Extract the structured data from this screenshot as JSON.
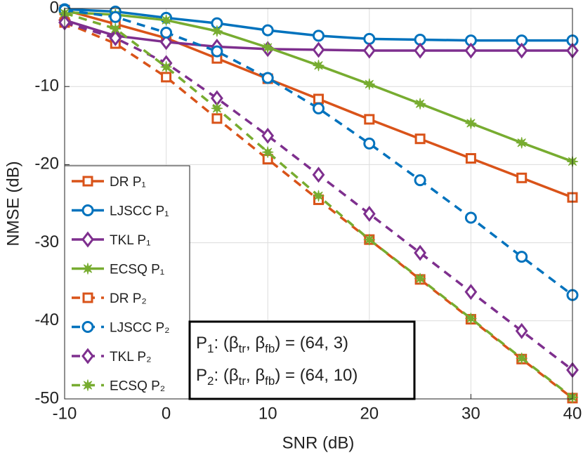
{
  "chart_data": {
    "type": "line",
    "xlabel": "SNR (dB)",
    "ylabel": "NMSE (dB)",
    "x": [
      -10,
      -5,
      0,
      5,
      10,
      15,
      20,
      25,
      30,
      35,
      40
    ],
    "xlim": [
      -10,
      40
    ],
    "xticks": [
      -10,
      0,
      10,
      20,
      30,
      40
    ],
    "ylim": [
      -50,
      0
    ],
    "yticks": [
      -50,
      -40,
      -30,
      -20,
      -10,
      0
    ],
    "grid": true,
    "legend": "lower left",
    "series": [
      {
        "name": "DR P₁",
        "color": "#d95319",
        "marker": "square",
        "dashed": false,
        "values": [
          -0.2,
          -2,
          -3.8,
          -6.4,
          -9,
          -11.6,
          -14.2,
          -16.7,
          -19.2,
          -21.7,
          -24.2
        ]
      },
      {
        "name": "LJSCC P₁",
        "color": "#0072bd",
        "marker": "circle",
        "dashed": false,
        "values": [
          -0.1,
          -0.4,
          -1.2,
          -1.9,
          -2.8,
          -3.5,
          -3.9,
          -4.0,
          -4.1,
          -4.1,
          -4.1
        ]
      },
      {
        "name": "TKL P₁",
        "color": "#7e2f8e",
        "marker": "diamond",
        "dashed": false,
        "values": [
          -1.5,
          -3.5,
          -4.3,
          -4.9,
          -5.2,
          -5.3,
          -5.4,
          -5.4,
          -5.4,
          -5.4,
          -5.4
        ]
      },
      {
        "name": "ECSQ P₁",
        "color": "#77ac30",
        "marker": "star",
        "dashed": false,
        "values": [
          -0.5,
          -0.8,
          -1.5,
          -2.9,
          -5.0,
          -7.3,
          -9.7,
          -12.2,
          -14.7,
          -17.2,
          -19.6
        ]
      },
      {
        "name": "DR P₂",
        "color": "#d95319",
        "marker": "square",
        "dashed": true,
        "values": [
          -1.8,
          -4.5,
          -8.8,
          -14.1,
          -19.3,
          -24.5,
          -29.6,
          -34.7,
          -39.8,
          -44.9,
          -49.9
        ]
      },
      {
        "name": "LJSCC P₂",
        "color": "#0072bd",
        "marker": "circle",
        "dashed": true,
        "values": [
          -0.2,
          -1.1,
          -3.1,
          -5.5,
          -8.9,
          -12.8,
          -17.3,
          -22.0,
          -26.8,
          -31.8,
          -36.7
        ]
      },
      {
        "name": "TKL P₂",
        "color": "#7e2f8e",
        "marker": "diamond",
        "dashed": true,
        "values": [
          -1.8,
          -3.8,
          -7.0,
          -11.5,
          -16.3,
          -21.3,
          -26.3,
          -31.3,
          -36.3,
          -41.3,
          -46.3
        ]
      },
      {
        "name": "ECSQ P₂",
        "color": "#77ac30",
        "marker": "star",
        "dashed": true,
        "values": [
          -0.6,
          -2.6,
          -7.5,
          -12.8,
          -18.4,
          -24.0,
          -29.6,
          -34.6,
          -39.7,
          -44.8,
          -49.8
        ]
      }
    ],
    "annotation": [
      [
        "P",
        "1",
        ":  (β",
        "tr",
        ", β",
        "fb",
        ") = (64,  3)"
      ],
      [
        "P",
        "2",
        ":  (β",
        "tr",
        ", β",
        "fb",
        ") = (64, 10)"
      ]
    ]
  }
}
